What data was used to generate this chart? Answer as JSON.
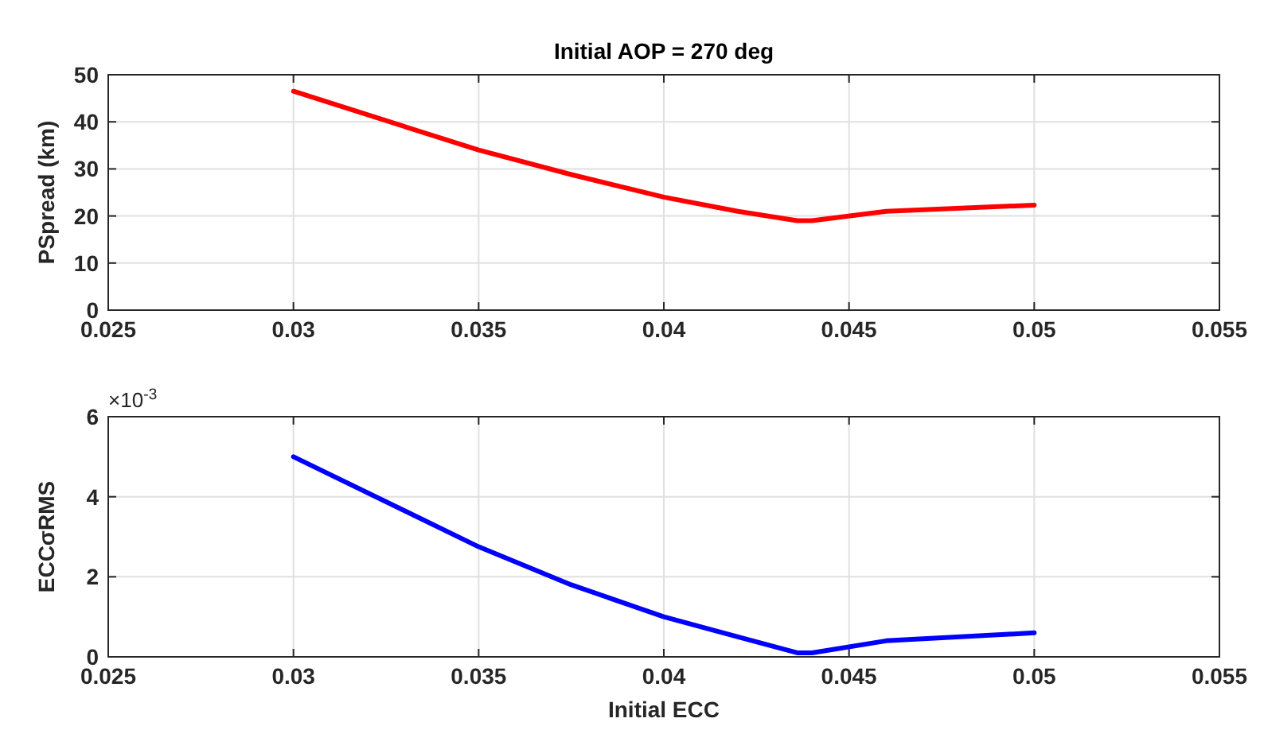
{
  "chart_data": [
    {
      "type": "line",
      "title": "Initial AOP = 270 deg",
      "ylabel": "PSpread (km)",
      "x": [
        0.03,
        0.035,
        0.0375,
        0.04,
        0.042,
        0.0436,
        0.044,
        0.046,
        0.05
      ],
      "series": [
        {
          "color": "#ff0000",
          "values": [
            46.5,
            34,
            28.8,
            24,
            21,
            19,
            19,
            21,
            22.3
          ]
        }
      ],
      "xlim": [
        0.025,
        0.055
      ],
      "xticks": [
        0.025,
        0.03,
        0.035,
        0.04,
        0.045,
        0.05,
        0.055
      ],
      "ylim": [
        0,
        50
      ],
      "yticks": [
        0,
        10,
        20,
        30,
        40,
        50
      ],
      "grid": true
    },
    {
      "type": "line",
      "xlabel": "Initial ECC",
      "ylabel": "ECCσRMS",
      "annotations": [
        "×10$^{-3}$"
      ],
      "x": [
        0.03,
        0.035,
        0.0375,
        0.04,
        0.042,
        0.0436,
        0.044,
        0.046,
        0.05
      ],
      "series": [
        {
          "color": "#0000ff",
          "values": [
            5,
            2.75,
            1.8,
            1,
            0.5,
            0.1,
            0.1,
            0.4,
            0.6
          ]
        }
      ],
      "xlim": [
        0.025,
        0.055
      ],
      "xticks": [
        0.025,
        0.03,
        0.035,
        0.04,
        0.045,
        0.05,
        0.055
      ],
      "ylim": [
        0,
        6
      ],
      "yticks": [
        0,
        2,
        4,
        6
      ],
      "grid": true
    }
  ]
}
